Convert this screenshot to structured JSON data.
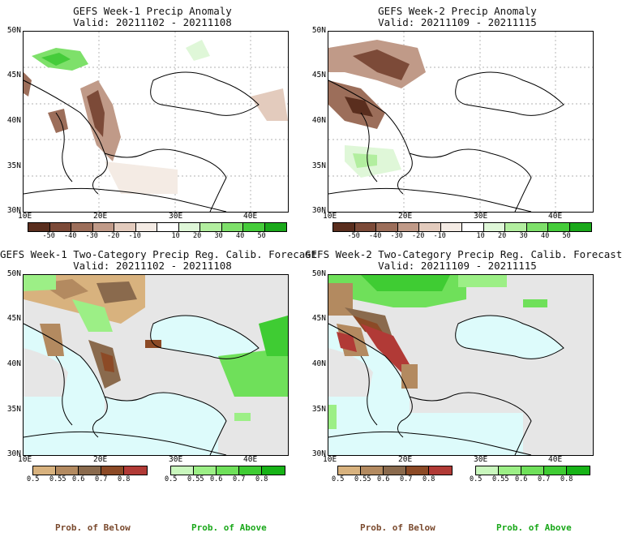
{
  "panels": [
    {
      "title": "GEFS Week-1 Precip Anomaly",
      "valid": "Valid: 20211102 - 20211108"
    },
    {
      "title": "GEFS Week-2 Precip Anomaly",
      "valid": "Valid: 20211109 - 20211115"
    },
    {
      "title": "GEFS Week-1 Two-Category Precip Reg. Calib. Forecast",
      "valid": "Valid: 20211102 - 20211108"
    },
    {
      "title": "GEFS Week-2 Two-Category Precip Reg. Calib. Forecast",
      "valid": "Valid: 20211109 - 20211115"
    }
  ],
  "lat_labels": [
    "50N",
    "45N",
    "40N",
    "35N",
    "30N"
  ],
  "lon_labels": [
    "10E",
    "20E",
    "30E",
    "40E"
  ],
  "anomaly_legend": {
    "labels": [
      "-50",
      "-40",
      "-30",
      "-20",
      "-10",
      "10",
      "20",
      "30",
      "40",
      "50"
    ],
    "colors": [
      "#5a2e1e",
      "#7c4a38",
      "#9c6e5a",
      "#c09a88",
      "#e3cbbd",
      "#f4ebe4",
      "#ffffff",
      "#dff7d8",
      "#b2ee9f",
      "#7ee06a",
      "#45cc3a",
      "#1aa81a"
    ]
  },
  "prob_below_legend": {
    "labels": [
      "0.5",
      "0.55",
      "0.6",
      "0.7",
      "0.8"
    ],
    "colors": [
      "#d8b27e",
      "#b38a60",
      "#8a6a4d",
      "#8c4a26",
      "#b13a36"
    ]
  },
  "prob_above_legend": {
    "labels": [
      "0.5",
      "0.55",
      "0.6",
      "0.7",
      "0.8"
    ],
    "colors": [
      "#c9f7bd",
      "#9cef86",
      "#6fe05a",
      "#3fcc33",
      "#17b317"
    ]
  },
  "footer": {
    "below": "Prob. of Below",
    "above": "Prob. of Above"
  },
  "colors": {
    "sea": "#ddfbfb",
    "land_gray": "#e6e6e6",
    "below_text": "#7a4a2e",
    "above_text": "#1aa81a"
  }
}
